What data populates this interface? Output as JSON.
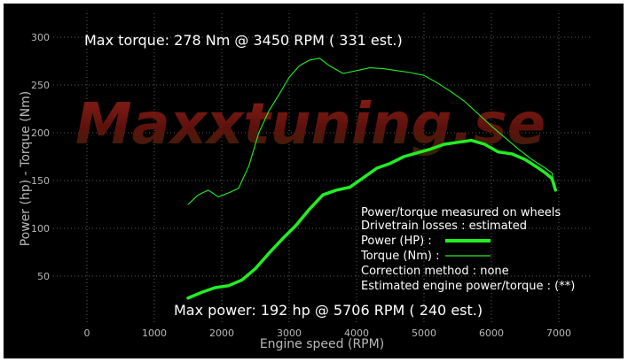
{
  "colors": {
    "background": "#000000",
    "grid": "#7a7a7a",
    "axis_text": "#b8b8b8",
    "power": "#22ee22",
    "torque": "#22ee22",
    "annotation_text": "#ffffff",
    "watermark": "#8a1c14"
  },
  "watermark": "Maxxtuning.se",
  "annotations": {
    "max_torque": "Max torque:  278 Nm @  3450 RPM ( 331 est.)",
    "max_power": "Max power:   192 hp @  5706 RPM ( 240 est.)"
  },
  "legend": {
    "lines": [
      "Power/torque measured on wheels",
      "Drivetrain losses : estimated"
    ],
    "power_label": "Power (HP)   :",
    "torque_label": "Torque (Nm)  :",
    "correction": "Correction method : none",
    "estimated": "Estimated engine power/torque : (**)"
  },
  "chart_data": {
    "type": "line",
    "xlabel": "Engine speed (RPM)",
    "ylabel": "Power (hp)  - Torque (Nm)",
    "xlim": [
      -500,
      7500
    ],
    "ylim": [
      0,
      325
    ],
    "xticks": [
      0,
      1000,
      2000,
      3000,
      4000,
      5000,
      6000,
      7000
    ],
    "yticks": [
      50,
      100,
      150,
      200,
      250,
      300
    ],
    "grid": true,
    "legend_position": "bottom-right",
    "series": [
      {
        "name": "Power (HP)",
        "style": "thick",
        "x": [
          1500,
          1700,
          1900,
          2100,
          2300,
          2500,
          2700,
          2900,
          3100,
          3300,
          3500,
          3700,
          3900,
          4100,
          4300,
          4500,
          4700,
          4900,
          5100,
          5300,
          5500,
          5700,
          5900,
          6100,
          6300,
          6500,
          6700,
          6800,
          6900,
          6950
        ],
        "y": [
          27,
          33,
          38,
          40,
          46,
          58,
          74,
          89,
          103,
          120,
          135,
          140,
          143,
          153,
          163,
          168,
          175,
          179,
          183,
          188,
          190,
          192,
          188,
          180,
          178,
          172,
          163,
          158,
          152,
          140
        ]
      },
      {
        "name": "Torque (Nm)",
        "style": "thin",
        "x": [
          1500,
          1650,
          1800,
          1950,
          2100,
          2250,
          2400,
          2550,
          2700,
          2850,
          3000,
          3150,
          3300,
          3450,
          3600,
          3800,
          4000,
          4200,
          4400,
          4600,
          4800,
          5000,
          5200,
          5400,
          5600,
          5800,
          6000,
          6200,
          6400,
          6600,
          6800,
          6900,
          6950
        ],
        "y": [
          125,
          135,
          140,
          133,
          137,
          142,
          165,
          200,
          223,
          240,
          258,
          270,
          276,
          278,
          270,
          262,
          265,
          268,
          267,
          265,
          263,
          260,
          252,
          243,
          233,
          220,
          207,
          195,
          183,
          172,
          163,
          158,
          140
        ]
      }
    ]
  }
}
